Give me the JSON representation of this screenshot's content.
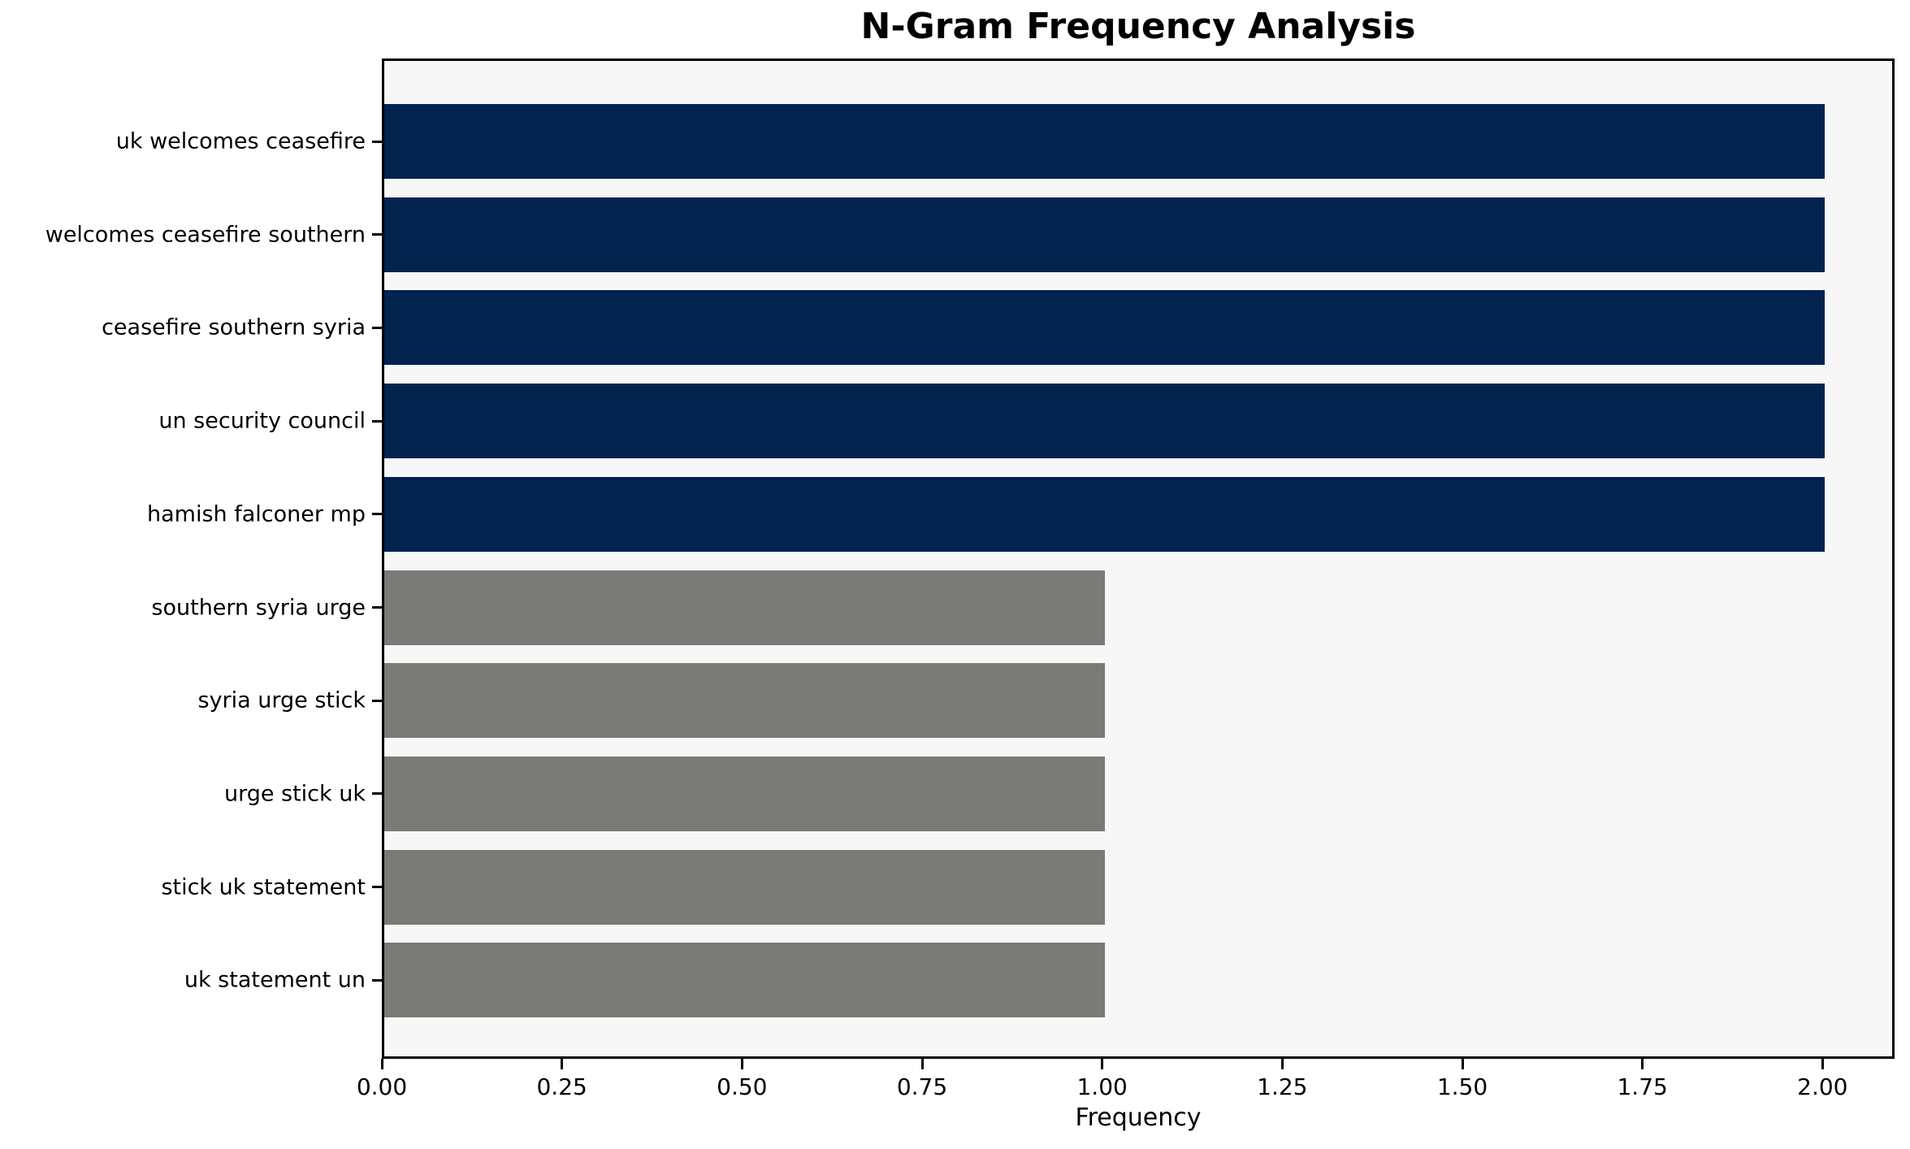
{
  "chart_data": {
    "type": "bar",
    "orientation": "horizontal",
    "title": "N-Gram Frequency Analysis",
    "xlabel": "Frequency",
    "ylabel": "",
    "categories": [
      "uk welcomes ceasefire",
      "welcomes ceasefire southern",
      "ceasefire southern syria",
      "un security council",
      "hamish falconer mp",
      "southern syria urge",
      "syria urge stick",
      "urge stick uk",
      "stick uk statement",
      "uk statement un"
    ],
    "values": [
      2,
      2,
      2,
      2,
      2,
      1,
      1,
      1,
      1,
      1
    ],
    "bar_colors": [
      "#01234e",
      "#01234e",
      "#01234e",
      "#01234e",
      "#01234e",
      "#7a7a76",
      "#7a7a76",
      "#7a7a76",
      "#7a7a76",
      "#7a7a76"
    ],
    "xlim": [
      0,
      2.1
    ],
    "x_tick_values": [
      0,
      0.25,
      0.5,
      0.75,
      1.0,
      1.25,
      1.5,
      1.75,
      2.0
    ],
    "x_tick_labels": [
      "0.00",
      "0.25",
      "0.50",
      "0.75",
      "1.00",
      "1.25",
      "1.50",
      "1.75",
      "2.00"
    ],
    "grid": false,
    "legend": "none",
    "colors": {
      "highlight_navy": "#01234e",
      "base_gray": "#7a7a76",
      "plot_background": "#f7f7f7",
      "figure_background": "#ffffff",
      "spine": "#000000",
      "text": "#000000"
    }
  }
}
